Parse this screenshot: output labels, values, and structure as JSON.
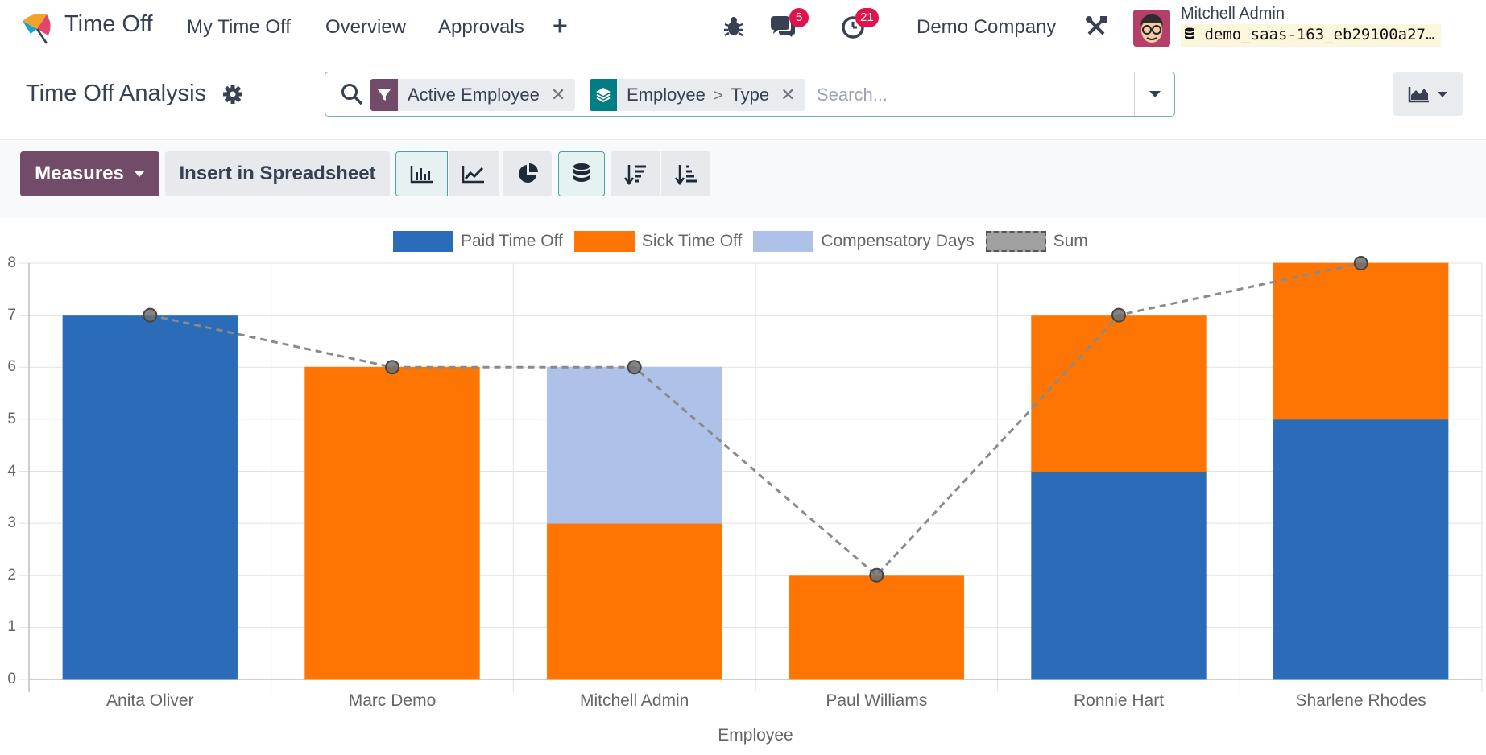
{
  "app": {
    "name": "Time Off"
  },
  "nav": {
    "items": [
      "My Time Off",
      "Overview",
      "Approvals"
    ]
  },
  "systray": {
    "messages_count": "5",
    "activities_count": "21",
    "company": "Demo Company"
  },
  "user": {
    "name": "Mitchell Admin",
    "database": "demo_saas-163_eb29100a27…"
  },
  "control": {
    "title": "Time Off Analysis",
    "facets": [
      {
        "label": "Active Employee"
      },
      {
        "parts": [
          "Employee",
          "Type"
        ]
      }
    ],
    "search_placeholder": "Search..."
  },
  "toolbar": {
    "measures_label": "Measures",
    "insert_label": "Insert in Spreadsheet"
  },
  "colors": {
    "brand": "#714b67",
    "paid": "#2a6cb7",
    "sick": "#ff7503",
    "comp": "#aec1e8",
    "sum": "#8a8a8a"
  },
  "chart_data": {
    "type": "bar",
    "stacked": true,
    "categories": [
      "Anita Oliver",
      "Marc Demo",
      "Mitchell Admin",
      "Paul Williams",
      "Ronnie Hart",
      "Sharlene Rhodes"
    ],
    "series": [
      {
        "name": "Paid Time Off",
        "color": "#2a6cb7",
        "values": [
          7,
          0,
          0,
          0,
          4,
          5
        ]
      },
      {
        "name": "Sick Time Off",
        "color": "#ff7503",
        "values": [
          0,
          6,
          3,
          2,
          3,
          3
        ]
      },
      {
        "name": "Compensatory Days",
        "color": "#aec1e8",
        "values": [
          0,
          0,
          3,
          0,
          0,
          0
        ]
      }
    ],
    "sum_series": {
      "name": "Sum",
      "type": "line",
      "style": "dashed",
      "values": [
        7,
        6,
        6,
        2,
        7,
        8
      ]
    },
    "xlabel": "Employee",
    "ylabel": "",
    "ylim": [
      0,
      8
    ],
    "yticks": [
      0,
      1,
      2,
      3,
      4,
      5,
      6,
      7,
      8
    ],
    "grid": true,
    "legend_position": "top"
  }
}
